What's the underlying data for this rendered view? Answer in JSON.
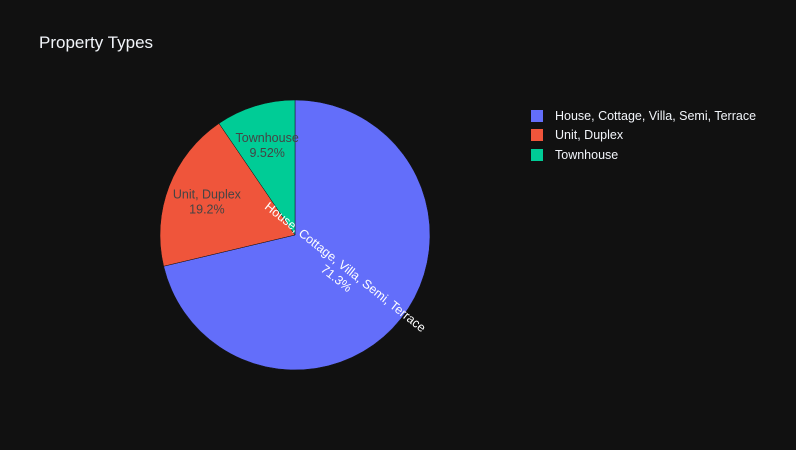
{
  "chart_data": {
    "type": "pie",
    "title": "Property Types",
    "slices": [
      {
        "label": "House, Cottage, Villa, Semi, Terrace",
        "value": 71.3,
        "percent_text": "71.3%",
        "color": "#636efa"
      },
      {
        "label": "Unit, Duplex",
        "value": 19.2,
        "percent_text": "19.2%",
        "color": "#ef553b"
      },
      {
        "label": "Townhouse",
        "value": 9.52,
        "percent_text": "9.52%",
        "color": "#00cc96"
      }
    ],
    "legend": {
      "placement": "top-right",
      "entries": [
        "House, Cottage, Villa, Semi, Terrace",
        "Unit, Duplex",
        "Townhouse"
      ]
    },
    "background": "#111111",
    "text_color": "#f2f5fa"
  }
}
